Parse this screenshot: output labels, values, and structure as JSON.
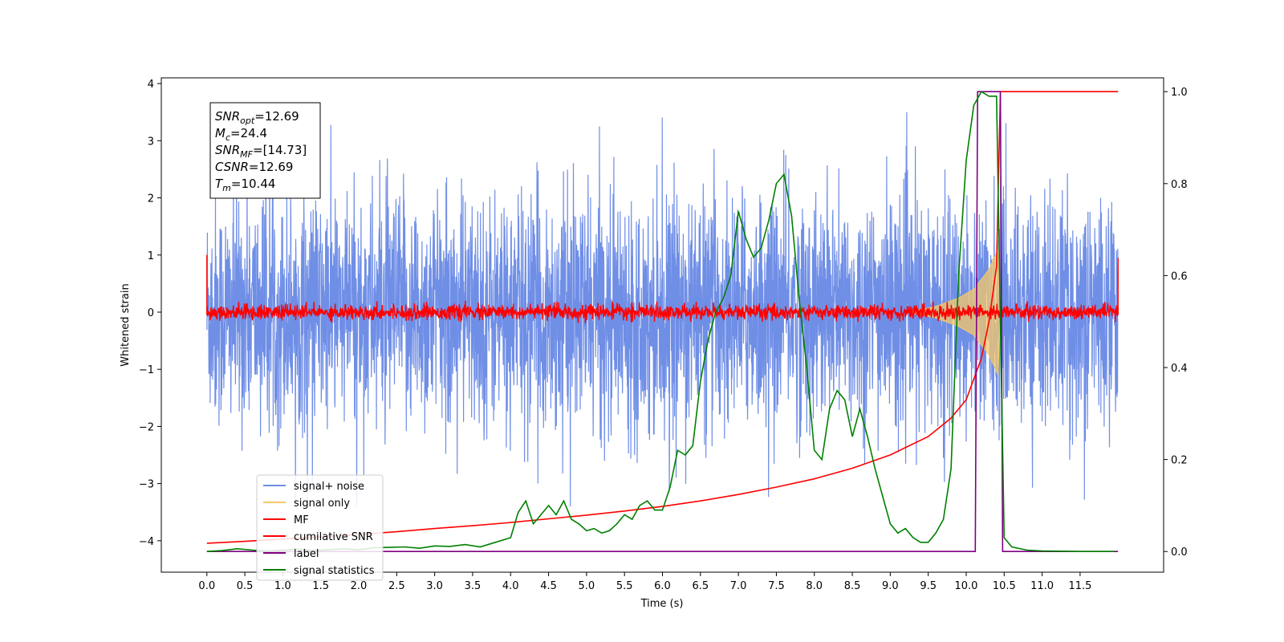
{
  "chart_data": {
    "type": "line",
    "title": "",
    "xlabel": "Time (s)",
    "ylabel": "Whitened strain",
    "xlim": [
      -0.6,
      12.6
    ],
    "ylim": [
      -4.55,
      4.1
    ],
    "y2lim": [
      -0.045,
      1.03
    ],
    "grid": false,
    "legend_position": "lower-left",
    "x_ticks": [
      "0.0",
      "0.5",
      "1.0",
      "1.5",
      "2.0",
      "2.5",
      "3.0",
      "3.5",
      "4.0",
      "4.5",
      "5.0",
      "5.5",
      "6.0",
      "6.5",
      "7.0",
      "7.5",
      "8.0",
      "8.5",
      "9.0",
      "9.5",
      "10.0",
      "10.5",
      "11.0",
      "11.5"
    ],
    "y_ticks": [
      "4",
      "3",
      "2",
      "1",
      "0",
      "−1",
      "−2",
      "−3",
      "−4"
    ],
    "y2_ticks": [
      "1.0",
      "0.8",
      "0.6",
      "0.4",
      "0.2",
      "0.0"
    ],
    "colors": {
      "signal_noise": "#6f8ee6",
      "signal_only": "#f5c86a",
      "mf": "#ff0000",
      "cumulative": "#ff0000",
      "label": "#800080",
      "statistics": "#008000"
    },
    "series": [
      {
        "name": "signal+ noise",
        "axis": "left",
        "description_amplitude": {
          "envelope_upper": 2.6,
          "envelope_lower": -2.6,
          "x_start": 0.0,
          "x_end": 12.0
        }
      },
      {
        "name": "signal only",
        "axis": "left",
        "x": [
          9.3,
          9.6,
          9.9,
          10.1,
          10.3,
          10.42,
          10.45
        ],
        "upper": [
          0.02,
          0.1,
          0.25,
          0.4,
          0.75,
          1.1,
          0.0
        ],
        "lower": [
          -0.02,
          -0.1,
          -0.25,
          -0.4,
          -0.75,
          -1.1,
          0.0
        ]
      },
      {
        "name": "MF",
        "axis": "left",
        "description_amplitude": {
          "mean": 0.0,
          "spread": 0.12,
          "x_start": 0.0,
          "x_end": 12.0
        }
      },
      {
        "name": "cumilative SNR",
        "axis": "right",
        "x": [
          0.0,
          0.5,
          1.0,
          1.5,
          2.0,
          2.5,
          3.0,
          3.5,
          4.0,
          4.5,
          5.0,
          5.5,
          6.0,
          6.5,
          7.0,
          7.5,
          8.0,
          8.5,
          9.0,
          9.5,
          9.8,
          10.0,
          10.2,
          10.3,
          10.4,
          10.45,
          10.5,
          11.0,
          11.5,
          12.0
        ],
        "values": [
          0.018,
          0.022,
          0.027,
          0.032,
          0.037,
          0.043,
          0.05,
          0.056,
          0.063,
          0.071,
          0.079,
          0.088,
          0.098,
          0.11,
          0.124,
          0.14,
          0.158,
          0.181,
          0.21,
          0.25,
          0.29,
          0.33,
          0.42,
          0.5,
          0.62,
          1.0,
          1.0,
          1.0,
          1.0,
          1.0
        ]
      },
      {
        "name": "label",
        "axis": "right",
        "x": [
          0.0,
          10.12,
          10.15,
          10.45,
          10.48,
          12.0
        ],
        "values": [
          0.0,
          0.0,
          1.0,
          1.0,
          0.0,
          0.0
        ]
      },
      {
        "name": "signal statistics",
        "axis": "right",
        "x": [
          0.0,
          0.2,
          0.4,
          0.6,
          0.8,
          1.0,
          1.2,
          1.4,
          1.6,
          1.8,
          2.0,
          2.2,
          2.4,
          2.6,
          2.8,
          3.0,
          3.2,
          3.4,
          3.6,
          3.8,
          4.0,
          4.1,
          4.2,
          4.3,
          4.4,
          4.5,
          4.6,
          4.7,
          4.8,
          4.9,
          5.0,
          5.1,
          5.2,
          5.3,
          5.4,
          5.5,
          5.6,
          5.7,
          5.8,
          5.9,
          6.0,
          6.1,
          6.2,
          6.3,
          6.4,
          6.5,
          6.6,
          6.7,
          6.8,
          6.9,
          7.0,
          7.1,
          7.2,
          7.3,
          7.4,
          7.5,
          7.6,
          7.7,
          7.8,
          7.9,
          8.0,
          8.1,
          8.2,
          8.3,
          8.4,
          8.5,
          8.6,
          8.7,
          8.8,
          8.9,
          9.0,
          9.1,
          9.2,
          9.3,
          9.4,
          9.5,
          9.6,
          9.7,
          9.8,
          9.9,
          10.0,
          10.1,
          10.2,
          10.3,
          10.4,
          10.45,
          10.5,
          10.6,
          10.8,
          11.0,
          11.5,
          11.95
        ],
        "values": [
          0.0,
          0.002,
          0.006,
          0.003,
          0.001,
          0.003,
          0.005,
          0.002,
          0.004,
          0.006,
          0.004,
          0.008,
          0.009,
          0.01,
          0.007,
          0.012,
          0.011,
          0.015,
          0.01,
          0.02,
          0.03,
          0.085,
          0.11,
          0.06,
          0.08,
          0.1,
          0.08,
          0.11,
          0.07,
          0.06,
          0.045,
          0.05,
          0.04,
          0.045,
          0.06,
          0.08,
          0.07,
          0.1,
          0.11,
          0.09,
          0.09,
          0.14,
          0.22,
          0.21,
          0.23,
          0.37,
          0.46,
          0.52,
          0.55,
          0.6,
          0.74,
          0.68,
          0.64,
          0.66,
          0.72,
          0.8,
          0.82,
          0.73,
          0.55,
          0.4,
          0.22,
          0.2,
          0.31,
          0.35,
          0.33,
          0.25,
          0.31,
          0.25,
          0.18,
          0.12,
          0.06,
          0.04,
          0.05,
          0.03,
          0.02,
          0.02,
          0.04,
          0.07,
          0.18,
          0.6,
          0.85,
          0.97,
          1.0,
          0.99,
          0.99,
          0.5,
          0.03,
          0.01,
          0.003,
          0.001,
          0.0,
          0.0
        ]
      }
    ],
    "annotation": {
      "lines": [
        {
          "main": "SNR",
          "sub": "opt",
          "rest": "=12.69"
        },
        {
          "main": "M",
          "sub": "c",
          "rest": "=24.4"
        },
        {
          "main": "SNR",
          "sub": "MF",
          "rest": "=[14.73]"
        },
        {
          "main": "CSNR",
          "sub": "",
          "rest": "=12.69"
        },
        {
          "main": "T",
          "sub": "m",
          "rest": "=10.44"
        }
      ]
    }
  }
}
